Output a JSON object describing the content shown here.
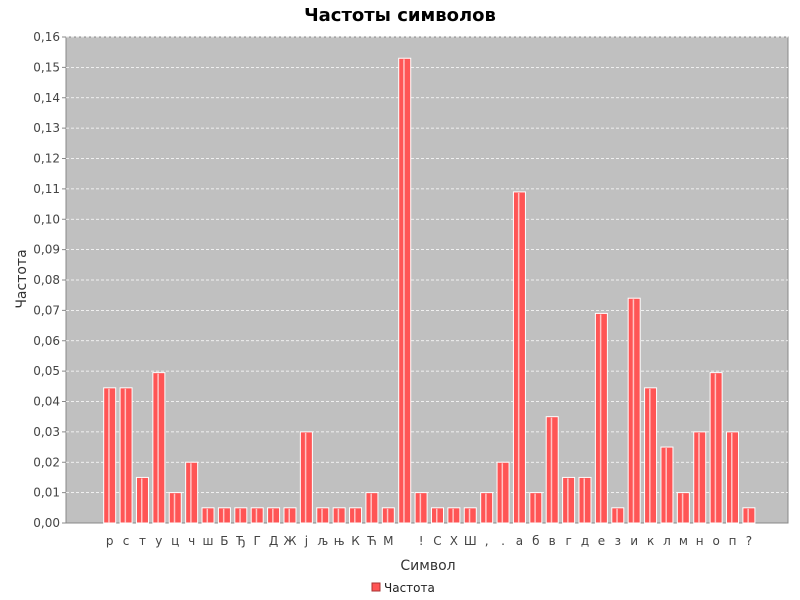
{
  "chart_data": {
    "type": "bar",
    "title": "Частоты символов",
    "xlabel": "Символ",
    "ylabel": "Частота",
    "ylim": [
      0,
      0.16
    ],
    "yticks": [
      "0,00",
      "0,01",
      "0,02",
      "0,03",
      "0,04",
      "0,05",
      "0,06",
      "0,07",
      "0,08",
      "0,09",
      "0,10",
      "0,11",
      "0,12",
      "0,13",
      "0,14",
      "0,15",
      "0,16"
    ],
    "grid": true,
    "legend_position": "bottom",
    "categories": [
      "р",
      "с",
      "т",
      "у",
      "ц",
      "ч",
      "ш",
      "Б",
      "Ђ",
      "Г",
      "Д",
      "Ж",
      "ј",
      "љ",
      "њ",
      "К",
      "Ћ",
      "М",
      " ",
      "!",
      "С",
      "Х",
      "Ш",
      ",",
      ".",
      "а",
      "б",
      "в",
      "г",
      "д",
      "е",
      "з",
      "и",
      "к",
      "л",
      "м",
      "н",
      "о",
      "п",
      "?"
    ],
    "series": [
      {
        "name": "Частота",
        "color": "#ff5555",
        "values": [
          0.0445,
          0.0445,
          0.015,
          0.0495,
          0.01,
          0.02,
          0.005,
          0.005,
          0.005,
          0.005,
          0.005,
          0.005,
          0.03,
          0.005,
          0.005,
          0.005,
          0.01,
          0.005,
          0.153,
          0.01,
          0.005,
          0.005,
          0.005,
          0.01,
          0.02,
          0.109,
          0.01,
          0.035,
          0.015,
          0.015,
          0.069,
          0.005,
          0.074,
          0.0445,
          0.025,
          0.01,
          0.03,
          0.0495,
          0.03,
          0.005
        ]
      }
    ],
    "plot_background": "#c0c0c0",
    "grid_color": "#ffffff"
  }
}
